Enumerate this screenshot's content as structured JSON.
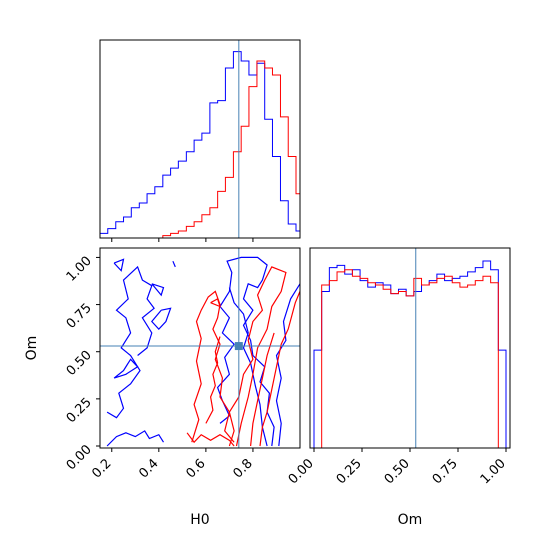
{
  "colors": {
    "posterior_a": "#0000ff",
    "posterior_b": "#ff0000",
    "truth": "#4682b4",
    "frame": "#000000"
  },
  "chart_data": [
    {
      "type": "histogram",
      "parameter": "H0",
      "xlim": [
        0.15,
        1.0
      ],
      "bin_edges": [
        0.15,
        0.183,
        0.217,
        0.25,
        0.283,
        0.317,
        0.35,
        0.383,
        0.417,
        0.45,
        0.483,
        0.517,
        0.55,
        0.583,
        0.617,
        0.65,
        0.683,
        0.717,
        0.75,
        0.783,
        0.817,
        0.85,
        0.883,
        0.917,
        0.95,
        0.983,
        1.0
      ],
      "series": [
        {
          "color": "blue",
          "counts": [
            0.02,
            0.04,
            0.07,
            0.09,
            0.13,
            0.15,
            0.19,
            0.22,
            0.27,
            0.3,
            0.33,
            0.37,
            0.42,
            0.45,
            0.58,
            0.59,
            0.73,
            0.8,
            0.76,
            0.7,
            0.75,
            0.51,
            0.35,
            0.16,
            0.06,
            0.03
          ]
        },
        {
          "color": "red",
          "counts": [
            0,
            0,
            0,
            0,
            0,
            0,
            0,
            0,
            0.01,
            0.02,
            0.03,
            0.05,
            0.07,
            0.1,
            0.13,
            0.2,
            0.26,
            0.37,
            0.48,
            0.65,
            0.76,
            0.73,
            0.7,
            0.52,
            0.35,
            0.19
          ]
        }
      ],
      "truth": 0.74,
      "xticks": [
        "0.2",
        "0.4",
        "0.6",
        "0.8"
      ]
    },
    {
      "type": "histogram",
      "parameter": "Om",
      "xlim": [
        0.0,
        1.0
      ],
      "bin_edges": [
        0.0,
        0.04,
        0.08,
        0.12,
        0.16,
        0.2,
        0.24,
        0.28,
        0.32,
        0.36,
        0.4,
        0.44,
        0.48,
        0.52,
        0.56,
        0.6,
        0.64,
        0.68,
        0.72,
        0.76,
        0.8,
        0.84,
        0.88,
        0.92,
        0.96,
        1.0
      ],
      "series": [
        {
          "color": "blue",
          "counts": [
            0.45,
            0.72,
            0.83,
            0.84,
            0.8,
            0.82,
            0.77,
            0.74,
            0.76,
            0.75,
            0.71,
            0.73,
            0.7,
            0.72,
            0.75,
            0.77,
            0.8,
            0.77,
            0.78,
            0.79,
            0.81,
            0.83,
            0.86,
            0.82,
            0.45
          ]
        },
        {
          "color": "red",
          "counts": [
            0,
            0.75,
            0.77,
            0.81,
            0.82,
            0.79,
            0.78,
            0.76,
            0.75,
            0.73,
            0.71,
            0.72,
            0.7,
            0.78,
            0.75,
            0.76,
            0.78,
            0.79,
            0.76,
            0.74,
            0.75,
            0.77,
            0.79,
            0.76,
            0
          ]
        }
      ],
      "truth": 0.53,
      "xticks": [
        "0.00",
        "0.25",
        "0.50",
        "0.75",
        "1.00"
      ],
      "xlabel": "Om"
    },
    {
      "type": "contour",
      "x_parameter": "H0",
      "y_parameter": "Om",
      "xlim": [
        0.15,
        1.0
      ],
      "ylim": [
        0.0,
        1.05
      ],
      "truth": {
        "x": 0.74,
        "y": 0.53
      },
      "xticks": [
        "0.2",
        "0.4",
        "0.6",
        "0.8"
      ],
      "yticks": [
        "0.00",
        "0.25",
        "0.50",
        "0.75",
        "1.00"
      ],
      "xlabel": "H0",
      "ylabel": "Om",
      "series": [
        {
          "color": "blue",
          "contours": [
            [
              [
                0.18,
                0.0
              ],
              [
                0.22,
                0.05
              ],
              [
                0.26,
                0.07
              ],
              [
                0.3,
                0.05
              ],
              [
                0.34,
                0.08
              ],
              [
                0.36,
                0.04
              ],
              [
                0.4,
                0.06
              ],
              [
                0.42,
                0.02
              ]
            ],
            [
              [
                0.18,
                0.18
              ],
              [
                0.22,
                0.15
              ],
              [
                0.25,
                0.2
              ],
              [
                0.23,
                0.28
              ],
              [
                0.28,
                0.33
              ],
              [
                0.32,
                0.4
              ],
              [
                0.28,
                0.48
              ],
              [
                0.24,
                0.52
              ],
              [
                0.28,
                0.6
              ],
              [
                0.26,
                0.68
              ],
              [
                0.22,
                0.72
              ],
              [
                0.27,
                0.78
              ],
              [
                0.25,
                0.88
              ],
              [
                0.31,
                0.95
              ],
              [
                0.33,
                0.88
              ],
              [
                0.37,
                0.85
              ],
              [
                0.35,
                0.78
              ],
              [
                0.38,
                0.73
              ],
              [
                0.33,
                0.68
              ],
              [
                0.37,
                0.6
              ],
              [
                0.35,
                0.52
              ],
              [
                0.31,
                0.48
              ]
            ],
            [
              [
                0.21,
                0.36
              ],
              [
                0.25,
                0.4
              ],
              [
                0.28,
                0.46
              ],
              [
                0.31,
                0.42
              ],
              [
                0.26,
                0.38
              ],
              [
                0.21,
                0.36
              ]
            ],
            [
              [
                0.41,
                0.72
              ],
              [
                0.45,
                0.73
              ],
              [
                0.43,
                0.66
              ],
              [
                0.4,
                0.62
              ],
              [
                0.37,
                0.66
              ],
              [
                0.41,
                0.72
              ]
            ],
            [
              [
                0.21,
                0.97
              ],
              [
                0.25,
                0.99
              ],
              [
                0.24,
                0.93
              ],
              [
                0.21,
                0.97
              ]
            ],
            [
              [
                0.37,
                0.86
              ],
              [
                0.42,
                0.84
              ],
              [
                0.41,
                0.8
              ],
              [
                0.37,
                0.86
              ]
            ],
            [
              [
                0.46,
                0.98
              ],
              [
                0.47,
                0.95
              ],
              [
                0.46,
                0.98
              ]
            ],
            [
              [
                0.66,
                0.12
              ],
              [
                0.7,
                0.16
              ],
              [
                0.67,
                0.24
              ],
              [
                0.65,
                0.31
              ],
              [
                0.7,
                0.38
              ],
              [
                0.68,
                0.47
              ],
              [
                0.72,
                0.54
              ],
              [
                0.67,
                0.6
              ],
              [
                0.7,
                0.68
              ],
              [
                0.66,
                0.74
              ],
              [
                0.7,
                0.82
              ],
              [
                0.71,
                0.92
              ],
              [
                0.69,
                0.98
              ],
              [
                0.75,
                1.0
              ],
              [
                0.82,
                1.0
              ],
              [
                0.86,
                0.96
              ],
              [
                0.84,
                0.88
              ],
              [
                0.82,
                0.84
              ],
              [
                0.78,
                0.86
              ],
              [
                0.76,
                0.78
              ],
              [
                0.8,
                0.72
              ],
              [
                0.76,
                0.64
              ],
              [
                0.79,
                0.56
              ],
              [
                0.8,
                0.48
              ],
              [
                0.85,
                0.42
              ],
              [
                0.83,
                0.34
              ],
              [
                0.87,
                0.28
              ],
              [
                0.86,
                0.18
              ],
              [
                0.89,
                0.1
              ],
              [
                0.88,
                0.0
              ]
            ],
            [
              [
                0.91,
                0.0
              ],
              [
                0.92,
                0.12
              ],
              [
                0.9,
                0.24
              ],
              [
                0.92,
                0.36
              ],
              [
                0.9,
                0.48
              ],
              [
                0.94,
                0.56
              ],
              [
                0.93,
                0.66
              ],
              [
                0.96,
                0.78
              ],
              [
                1.0,
                0.86
              ]
            ],
            [
              [
                0.86,
                0.0
              ],
              [
                0.84,
                0.1
              ],
              [
                0.83,
                0.22
              ],
              [
                0.81,
                0.32
              ],
              [
                0.79,
                0.44
              ],
              [
                0.76,
                0.52
              ],
              [
                0.78,
                0.6
              ],
              [
                0.76,
                0.7
              ],
              [
                0.72,
                0.76
              ],
              [
                0.7,
                0.84
              ]
            ]
          ]
        },
        {
          "color": "red",
          "contours": [
            [
              [
                0.52,
                0.07
              ],
              [
                0.55,
                0.02
              ],
              [
                0.58,
                0.06
              ],
              [
                0.62,
                0.03
              ],
              [
                0.66,
                0.06
              ],
              [
                0.7,
                0.03
              ],
              [
                0.72,
                0.0
              ]
            ],
            [
              [
                0.54,
                0.02
              ],
              [
                0.57,
                0.14
              ],
              [
                0.55,
                0.22
              ],
              [
                0.58,
                0.33
              ],
              [
                0.56,
                0.45
              ],
              [
                0.58,
                0.57
              ],
              [
                0.56,
                0.66
              ],
              [
                0.58,
                0.72
              ],
              [
                0.61,
                0.79
              ],
              [
                0.64,
                0.82
              ],
              [
                0.66,
                0.75
              ],
              [
                0.65,
                0.68
              ],
              [
                0.63,
                0.62
              ],
              [
                0.66,
                0.54
              ],
              [
                0.64,
                0.46
              ],
              [
                0.67,
                0.36
              ],
              [
                0.66,
                0.26
              ],
              [
                0.7,
                0.18
              ],
              [
                0.68,
                0.08
              ],
              [
                0.72,
                0.02
              ]
            ],
            [
              [
                0.6,
                0.12
              ],
              [
                0.63,
                0.19
              ],
              [
                0.62,
                0.26
              ],
              [
                0.64,
                0.32
              ],
              [
                0.63,
                0.38
              ],
              [
                0.65,
                0.44
              ],
              [
                0.64,
                0.5
              ],
              [
                0.66,
                0.58
              ]
            ],
            [
              [
                0.62,
                0.76
              ],
              [
                0.65,
                0.78
              ],
              [
                0.66,
                0.74
              ],
              [
                0.62,
                0.76
              ]
            ],
            [
              [
                0.73,
                0.0
              ],
              [
                0.75,
                0.12
              ],
              [
                0.78,
                0.26
              ],
              [
                0.8,
                0.38
              ],
              [
                0.82,
                0.52
              ],
              [
                0.86,
                0.62
              ],
              [
                0.88,
                0.74
              ],
              [
                0.92,
                0.82
              ],
              [
                0.94,
                0.92
              ],
              [
                0.88,
                0.95
              ],
              [
                0.85,
                0.88
              ],
              [
                0.82,
                0.8
              ],
              [
                0.84,
                0.72
              ],
              [
                0.8,
                0.66
              ],
              [
                0.78,
                0.56
              ],
              [
                0.8,
                0.46
              ],
              [
                0.76,
                0.38
              ],
              [
                0.74,
                0.26
              ],
              [
                0.7,
                0.18
              ],
              [
                0.72,
                0.08
              ],
              [
                0.7,
                0.0
              ]
            ],
            [
              [
                0.83,
                0.0
              ],
              [
                0.84,
                0.1
              ],
              [
                0.86,
                0.18
              ],
              [
                0.88,
                0.3
              ],
              [
                0.9,
                0.42
              ],
              [
                0.92,
                0.54
              ],
              [
                0.95,
                0.62
              ],
              [
                0.98,
                0.76
              ],
              [
                1.0,
                0.82
              ]
            ],
            [
              [
                0.79,
                0.0
              ],
              [
                0.8,
                0.12
              ],
              [
                0.82,
                0.24
              ],
              [
                0.84,
                0.36
              ],
              [
                0.86,
                0.48
              ],
              [
                0.89,
                0.6
              ]
            ]
          ]
        }
      ]
    }
  ]
}
